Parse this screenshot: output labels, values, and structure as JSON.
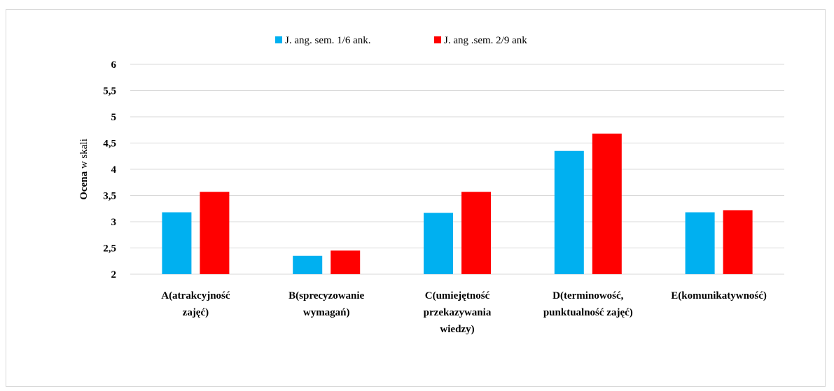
{
  "chart_data": {
    "type": "bar",
    "ylabel_bold": "Ocena",
    "ylabel_rest": " w skali",
    "ylim": [
      2,
      6
    ],
    "yticks": [
      "2",
      "2,5",
      "3",
      "3,5",
      "4",
      "4,5",
      "5",
      "5,5",
      "6"
    ],
    "grid": true,
    "legend_position": "top",
    "categories": [
      [
        "A(atrakcyjność",
        "zajęć)"
      ],
      [
        "B(sprecyzowanie",
        "wymagań)"
      ],
      [
        "C(umiejętność",
        "przekazywania",
        "wiedzy)"
      ],
      [
        "D(terminowość,",
        "punktualność zajęć)"
      ],
      [
        "E(komunikatywność)"
      ]
    ],
    "series": [
      {
        "name": "J. ang. sem. 1/6 ank.",
        "color": "#00b0f0",
        "values": [
          3.18,
          2.35,
          3.17,
          4.35,
          3.18
        ]
      },
      {
        "name": "J. ang .sem. 2/9 ank",
        "color": "#ff0000",
        "values": [
          3.57,
          2.45,
          3.57,
          4.68,
          3.22
        ]
      }
    ]
  }
}
